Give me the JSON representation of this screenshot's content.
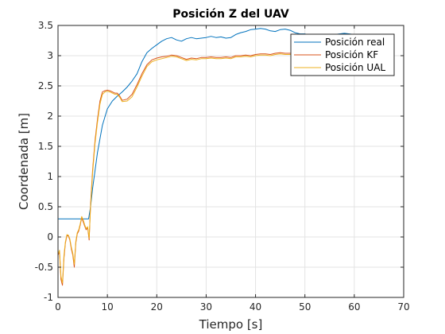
{
  "chart_data": {
    "type": "line",
    "title": "Posición Z del UAV",
    "xlabel": "Tiempo [s]",
    "ylabel": "Coordenada [m]",
    "xlim": [
      0,
      70
    ],
    "ylim": [
      -1,
      3.5
    ],
    "xticks": [
      0,
      10,
      20,
      30,
      40,
      50,
      60,
      70
    ],
    "xtick_labels": [
      "0",
      "10",
      "20",
      "30",
      "40",
      "50",
      "60",
      "70"
    ],
    "yticks": [
      -1,
      -0.5,
      0,
      0.5,
      1,
      1.5,
      2,
      2.5,
      3,
      3.5
    ],
    "ytick_labels": [
      "-1",
      "-0.5",
      "0",
      "0.5",
      "1",
      "1.5",
      "2",
      "2.5",
      "3",
      "3.5"
    ],
    "grid": true,
    "legend_position": "top-right",
    "series": [
      {
        "name": "Posición real",
        "color": "#0072BD",
        "x": [
          0,
          6.2,
          6.6,
          7,
          8,
          9,
          10,
          11,
          12,
          13,
          14,
          15,
          16,
          17,
          18,
          19,
          20,
          21,
          22,
          23,
          24,
          25,
          26,
          27,
          28,
          29,
          30,
          31,
          32,
          33,
          34,
          35,
          36,
          37,
          38,
          39,
          40,
          41,
          42,
          43,
          44,
          45,
          46,
          47,
          48,
          49,
          50,
          51,
          52,
          53,
          54,
          55,
          56,
          57,
          58,
          59,
          60
        ],
        "y": [
          0.3,
          0.3,
          0.5,
          0.8,
          1.4,
          1.85,
          2.12,
          2.25,
          2.33,
          2.4,
          2.48,
          2.58,
          2.7,
          2.9,
          3.05,
          3.12,
          3.18,
          3.24,
          3.28,
          3.3,
          3.26,
          3.24,
          3.28,
          3.3,
          3.28,
          3.29,
          3.3,
          3.32,
          3.3,
          3.31,
          3.29,
          3.3,
          3.35,
          3.38,
          3.4,
          3.43,
          3.44,
          3.45,
          3.44,
          3.41,
          3.4,
          3.43,
          3.44,
          3.42,
          3.38,
          3.36,
          3.36,
          3.33,
          3.31,
          3.32,
          3.33,
          3.34,
          3.35,
          3.36,
          3.37,
          3.36,
          3.35
        ]
      },
      {
        "name": "Posición KF",
        "color": "#D95319",
        "x": [
          0,
          0.3,
          0.6,
          0.9,
          1.2,
          1.5,
          1.8,
          2.1,
          2.4,
          2.7,
          3,
          3.3,
          3.6,
          3.9,
          4.2,
          4.5,
          4.8,
          5.1,
          5.4,
          5.7,
          6,
          6.3,
          6.6,
          7,
          7.5,
          8,
          8.5,
          9,
          9.5,
          10,
          10.5,
          11,
          11.5,
          12,
          12.5,
          13,
          14,
          15,
          16,
          17,
          18,
          19,
          20,
          21,
          22,
          23,
          24,
          25,
          26,
          27,
          28,
          29,
          30,
          31,
          32,
          33,
          34,
          35,
          36,
          37,
          38,
          39,
          40,
          41,
          42,
          43,
          44,
          45,
          46,
          47,
          48,
          49,
          50,
          51,
          52,
          53,
          54,
          55,
          56,
          57,
          58,
          59,
          60
        ],
        "y": [
          -0.3,
          -0.25,
          -0.7,
          -0.8,
          -0.35,
          -0.1,
          0.02,
          0.02,
          -0.05,
          -0.2,
          -0.3,
          -0.5,
          -0.1,
          0.05,
          0.1,
          0.2,
          0.32,
          0.25,
          0.18,
          0.12,
          0.15,
          -0.05,
          0.55,
          1.1,
          1.6,
          1.95,
          2.25,
          2.4,
          2.42,
          2.43,
          2.42,
          2.4,
          2.38,
          2.38,
          2.33,
          2.26,
          2.28,
          2.36,
          2.52,
          2.7,
          2.85,
          2.93,
          2.96,
          2.98,
          2.99,
          3.01,
          3.0,
          2.97,
          2.94,
          2.96,
          2.95,
          2.97,
          2.97,
          2.98,
          2.97,
          2.97,
          2.98,
          2.97,
          3.0,
          3.0,
          3.01,
          3.0,
          3.02,
          3.03,
          3.03,
          3.02,
          3.04,
          3.05,
          3.04,
          3.04,
          3.05,
          3.04,
          3.04,
          3.05,
          3.05,
          3.05,
          3.04,
          3.05,
          3.06,
          3.05,
          3.07,
          3.07,
          3.06
        ]
      },
      {
        "name": "Posición UAL",
        "color": "#EDB120",
        "x": [
          0,
          0.3,
          0.6,
          0.9,
          1.2,
          1.5,
          1.8,
          2.1,
          2.4,
          2.7,
          3,
          3.3,
          3.6,
          3.9,
          4.2,
          4.5,
          4.8,
          5.1,
          5.4,
          5.7,
          6,
          6.3,
          6.6,
          7,
          7.5,
          8,
          8.5,
          9,
          9.5,
          10,
          10.5,
          11,
          11.5,
          12,
          12.5,
          13,
          14,
          15,
          16,
          17,
          18,
          19,
          20,
          21,
          22,
          23,
          24,
          25,
          26,
          27,
          28,
          29,
          30,
          31,
          32,
          33,
          34,
          35,
          36,
          37,
          38,
          39,
          40,
          41,
          42,
          43,
          44,
          45,
          46,
          47,
          48,
          49,
          50,
          51,
          52,
          53,
          54,
          55,
          56,
          57,
          58,
          59,
          60
        ],
        "y": [
          -0.28,
          -0.22,
          -0.65,
          -0.76,
          -0.3,
          -0.08,
          0.04,
          0.03,
          -0.03,
          -0.17,
          -0.27,
          -0.45,
          -0.07,
          0.07,
          0.12,
          0.22,
          0.34,
          0.28,
          0.2,
          0.14,
          0.17,
          -0.02,
          0.5,
          1.05,
          1.55,
          1.9,
          2.2,
          2.36,
          2.4,
          2.41,
          2.4,
          2.38,
          2.36,
          2.36,
          2.31,
          2.24,
          2.25,
          2.32,
          2.48,
          2.66,
          2.82,
          2.9,
          2.93,
          2.95,
          2.97,
          2.99,
          2.98,
          2.95,
          2.92,
          2.94,
          2.93,
          2.95,
          2.95,
          2.96,
          2.95,
          2.95,
          2.96,
          2.95,
          2.98,
          2.98,
          2.99,
          2.98,
          3.0,
          3.01,
          3.01,
          3.0,
          3.02,
          3.03,
          3.02,
          3.02,
          3.03,
          3.02,
          3.02,
          3.03,
          3.03,
          3.03,
          3.02,
          3.03,
          3.04,
          3.03,
          3.05,
          3.05,
          3.04
        ]
      }
    ]
  }
}
